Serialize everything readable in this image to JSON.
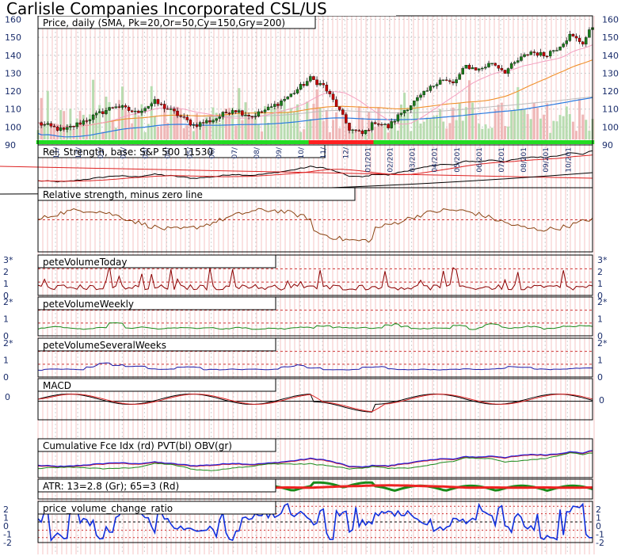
{
  "chart_data": {
    "type": "line",
    "title": "Carlisle Companies Incorporated CSL/US",
    "date_labels": [
      "11/",
      "12/",
      "01/",
      "02/",
      "03/",
      "04/",
      "05/",
      "06/",
      "07/",
      "08/",
      "09/",
      "10/",
      "11/",
      "12/",
      "01/201",
      "02/201",
      "03/201",
      "04/201",
      "05/201",
      "06/201",
      "07/201",
      "08/201",
      "09/201",
      "10/201"
    ],
    "panels": [
      {
        "key": "price",
        "label": "Price, daily (SMA, Pk=20,Or=50,Cy=150,Gry=200)",
        "ticks": [
          "160",
          "150",
          "140",
          "130",
          "120",
          "110",
          "100",
          "90"
        ],
        "colors": {
          "candle_up": "#1a7a1a",
          "candle_down": "#c00000",
          "pk": "#f4a0c0",
          "or": "#f0902a",
          "cy": "#2a7ae0",
          "gry": "#bbbbbb"
        },
        "series": [
          {
            "name": "close",
            "points": [
              [
                0,
                102
              ],
              [
                8,
                98
              ],
              [
                16,
                105
              ],
              [
                24,
                112
              ],
              [
                30,
                108
              ],
              [
                36,
                114
              ],
              [
                42,
                108
              ],
              [
                48,
                101
              ],
              [
                54,
                104
              ],
              [
                60,
                110
              ],
              [
                66,
                106
              ],
              [
                72,
                111
              ],
              [
                78,
                118
              ],
              [
                84,
                127
              ],
              [
                88,
                123
              ],
              [
                92,
                112
              ],
              [
                96,
                99
              ],
              [
                100,
                96
              ],
              [
                104,
                103
              ],
              [
                108,
                100
              ],
              [
                112,
                108
              ],
              [
                116,
                114
              ],
              [
                120,
                120
              ],
              [
                124,
                127
              ],
              [
                128,
                124
              ],
              [
                132,
                134
              ],
              [
                136,
                132
              ],
              [
                140,
                136
              ],
              [
                144,
                131
              ],
              [
                148,
                137
              ],
              [
                152,
                142
              ],
              [
                156,
                140
              ],
              [
                160,
                144
              ],
              [
                164,
                151
              ],
              [
                168,
                147
              ],
              [
                171,
                156
              ]
            ]
          }
        ]
      },
      {
        "key": "rs",
        "label": "Rel. Strength, base: S&P 500 11530",
        "ticks": []
      },
      {
        "key": "rsz",
        "label": "Relative strength, minus zero line",
        "ticks": []
      },
      {
        "key": "vt",
        "label": "peteVolumeToday",
        "ticks": [
          "3*",
          "2",
          "1",
          "0"
        ]
      },
      {
        "key": "vw",
        "label": "peteVolumeWeekly",
        "ticks": [
          "2*",
          "1",
          "0"
        ]
      },
      {
        "key": "vs",
        "label": "peteVolumeSeveralWeeks",
        "ticks": [
          "2*",
          "1",
          "0"
        ]
      },
      {
        "key": "macd",
        "label": "MACD",
        "ticks": [
          "0"
        ]
      },
      {
        "key": "cfi",
        "label": "Cumulative Fce Idx (rd) PVT(bl) OBV(gr)",
        "ticks": []
      },
      {
        "key": "atr",
        "label": "ATR: 13=2.8 (Gr); 65=3 (Rd)",
        "ticks": []
      },
      {
        "key": "pvr",
        "label": "price_volume_change_ratio",
        "ticks": [
          "2",
          "1",
          "0",
          "-1",
          "-2"
        ]
      }
    ]
  }
}
